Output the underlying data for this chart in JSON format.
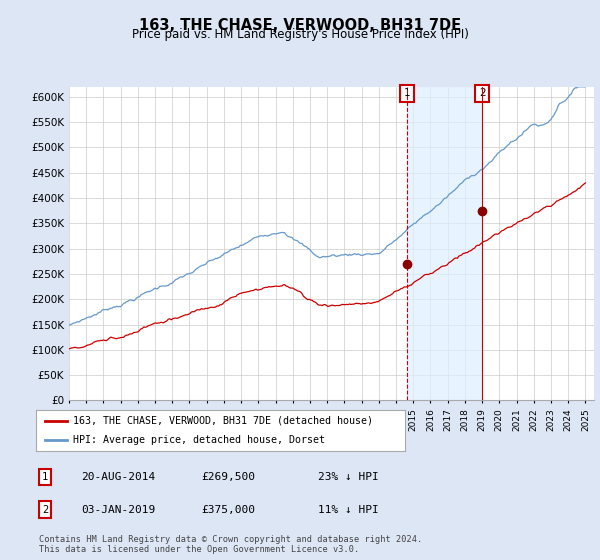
{
  "title": "163, THE CHASE, VERWOOD, BH31 7DE",
  "subtitle": "Price paid vs. HM Land Registry's House Price Index (HPI)",
  "red_label": "163, THE CHASE, VERWOOD, BH31 7DE (detached house)",
  "blue_label": "HPI: Average price, detached house, Dorset",
  "sale1_date": "20-AUG-2014",
  "sale1_price": "£269,500",
  "sale1_hpi": "23% ↓ HPI",
  "sale1_year": 2014.64,
  "sale1_value": 269500,
  "sale2_date": "03-JAN-2019",
  "sale2_price": "£375,000",
  "sale2_hpi": "11% ↓ HPI",
  "sale2_year": 2019.01,
  "sale2_value": 375000,
  "ylim": [
    0,
    620000
  ],
  "yticks": [
    0,
    50000,
    100000,
    150000,
    200000,
    250000,
    300000,
    350000,
    400000,
    450000,
    500000,
    550000,
    600000
  ],
  "footer": "Contains HM Land Registry data © Crown copyright and database right 2024.\nThis data is licensed under the Open Government Licence v3.0.",
  "fig_bg_color": "#dce6f5",
  "plot_bg_color": "#ffffff",
  "grid_color": "#cccccc",
  "red_color": "#cc0000",
  "blue_color": "#6699cc",
  "shade_color": "#ddeeff",
  "title_fontsize": 10.5,
  "subtitle_fontsize": 8.5
}
